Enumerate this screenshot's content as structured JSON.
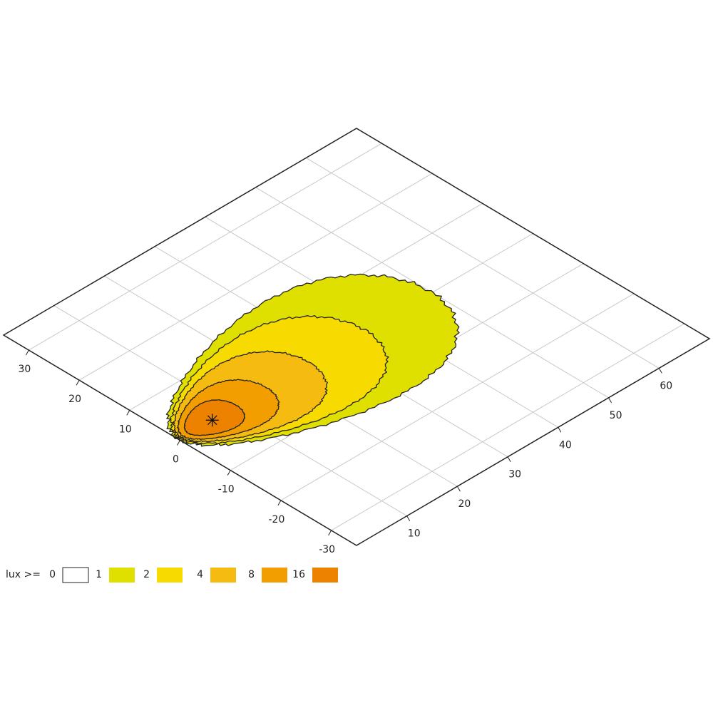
{
  "chart_data": {
    "type": "isolux",
    "legend_title": "lux >=",
    "levels": [
      0,
      1,
      2,
      4,
      8,
      16
    ],
    "colors": [
      "#ffffff",
      "#dfe000",
      "#f6da00",
      "#f6bb10",
      "#f29e00",
      "#ec8200"
    ],
    "xlim": [
      0,
      70
    ],
    "xticks": [
      10,
      20,
      30,
      40,
      50,
      60
    ],
    "ylim": [
      -35,
      35
    ],
    "yticks": [
      -30,
      -20,
      -10,
      0,
      10,
      20,
      30
    ],
    "grid": true
  }
}
